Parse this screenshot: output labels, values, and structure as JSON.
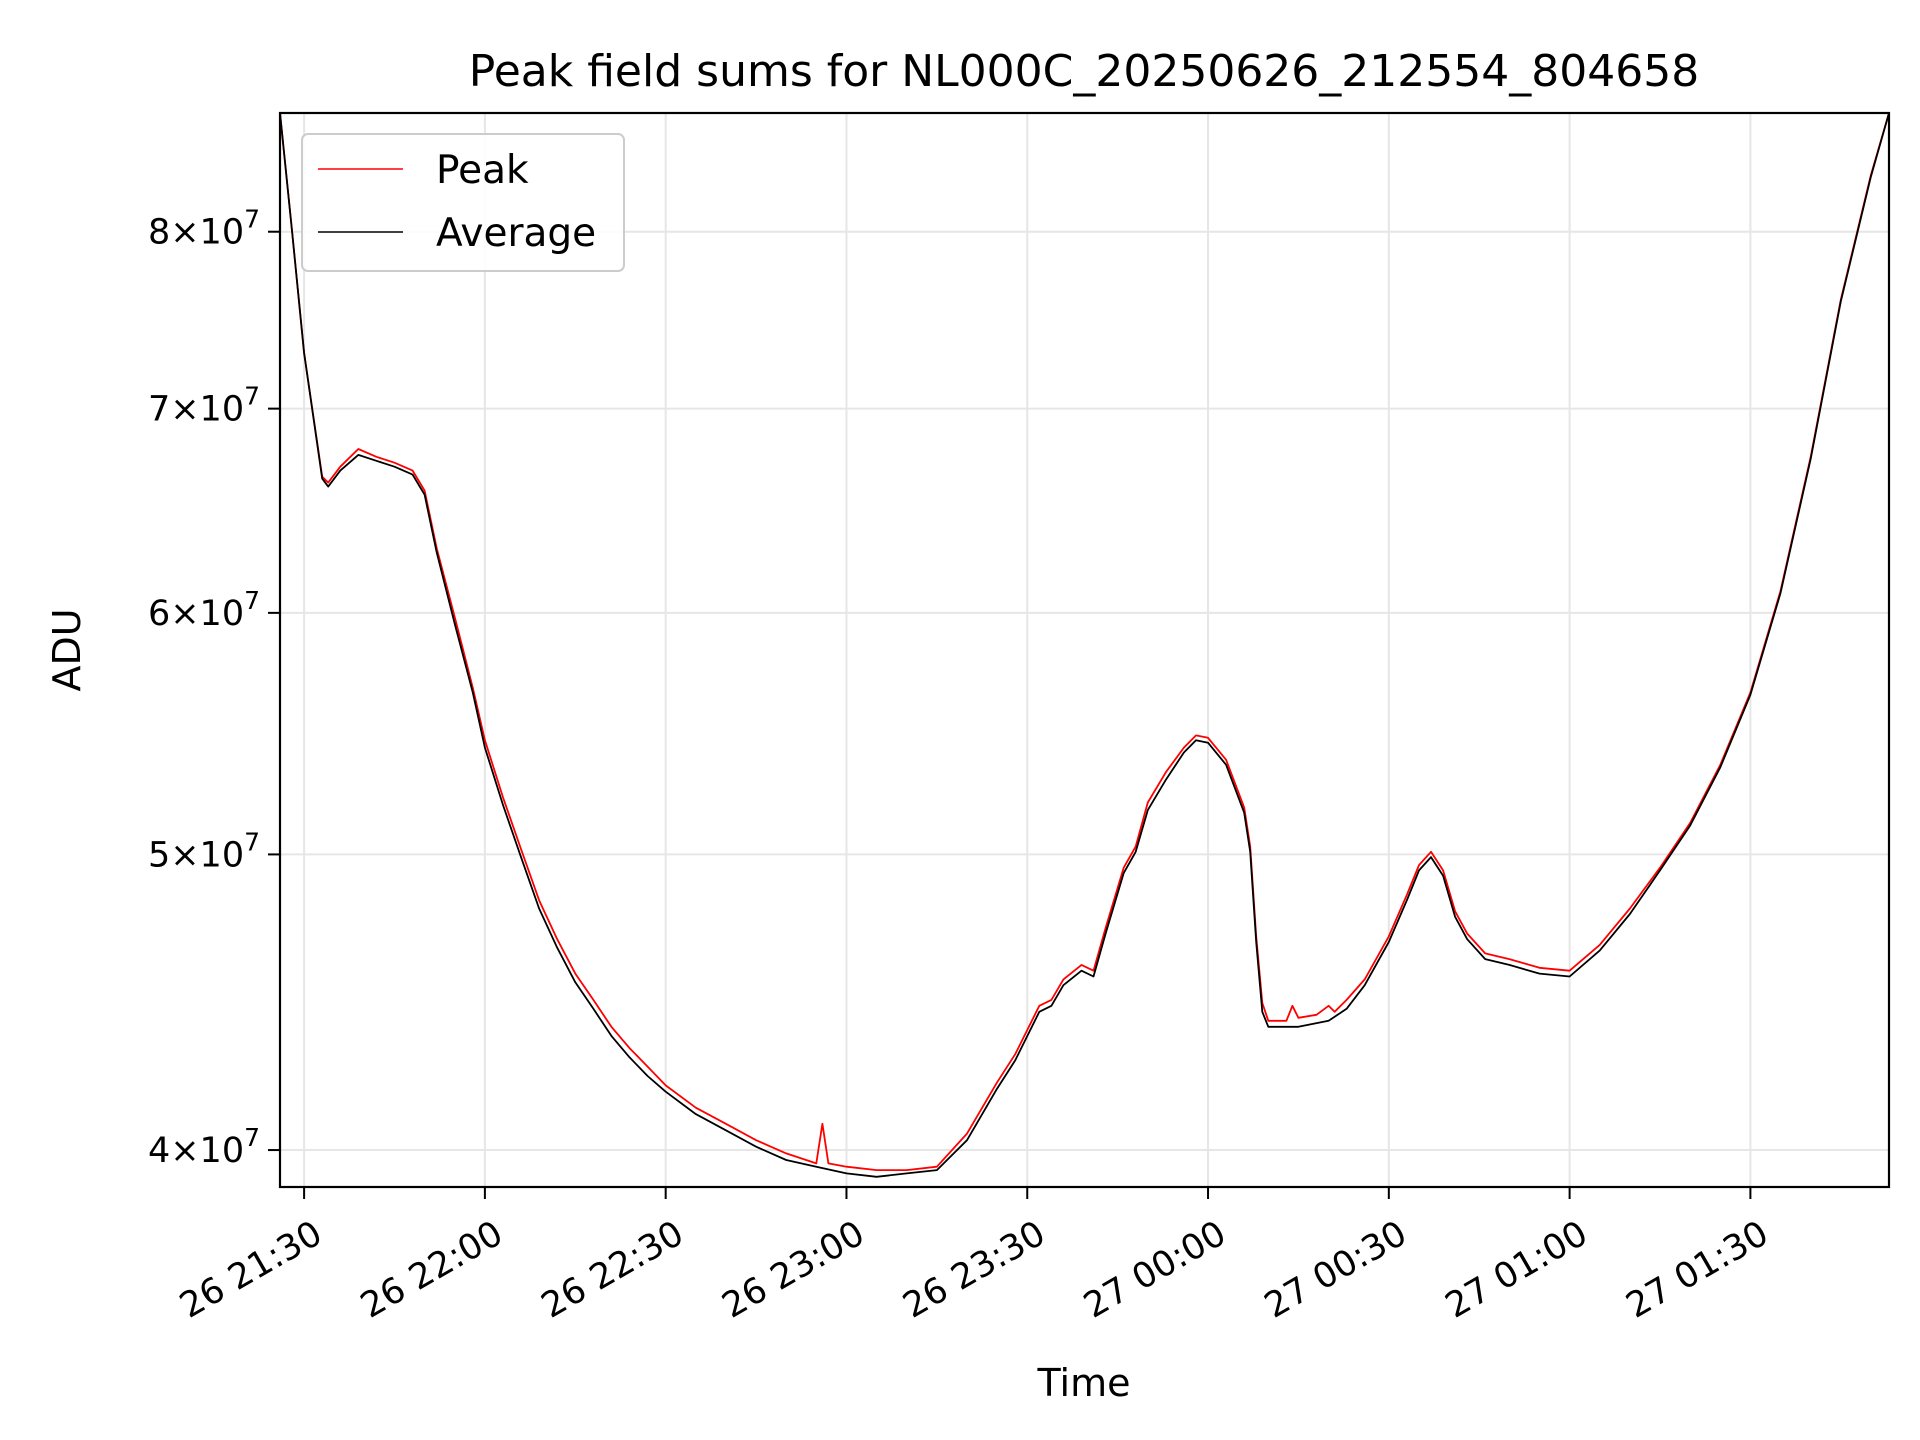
{
  "chart_data": {
    "type": "line",
    "title": "Peak field sums for NL000C_20250626_212554_804658",
    "xlabel": "Time",
    "ylabel": "ADU",
    "x_ticks": [
      "26 21:30",
      "26 22:00",
      "26 22:30",
      "26 23:00",
      "26 23:30",
      "27 00:00",
      "27 00:30",
      "27 01:00",
      "27 01:30"
    ],
    "x_tick_times": [
      "2025-06-26T21:30",
      "2025-06-26T22:00",
      "2025-06-26T22:30",
      "2025-06-26T23:00",
      "2025-06-26T23:30",
      "2025-06-27T00:00",
      "2025-06-27T00:30",
      "2025-06-27T01:00",
      "2025-06-27T01:30"
    ],
    "xlim": [
      "2025-06-26T21:26",
      "2025-06-27T01:53"
    ],
    "y_scale": "log",
    "ylim": [
      38900000,
      87500000
    ],
    "y_ticks": [
      {
        "value": 40000000,
        "mantissa": "4",
        "exponent": "7"
      },
      {
        "value": 50000000,
        "mantissa": "5",
        "exponent": "7"
      },
      {
        "value": 60000000,
        "mantissa": "6",
        "exponent": "7"
      },
      {
        "value": 70000000,
        "mantissa": "7",
        "exponent": "7"
      },
      {
        "value": 80000000,
        "mantissa": "8",
        "exponent": "7"
      }
    ],
    "grid": true,
    "legend_position": "top-left",
    "series": [
      {
        "name": "Peak",
        "color": "#ff0000",
        "points": [
          [
            "2025-06-26T21:26",
            87500000
          ],
          [
            "2025-06-26T21:28",
            80000000
          ],
          [
            "2025-06-26T21:30",
            73000000
          ],
          [
            "2025-06-26T21:33",
            66500000
          ],
          [
            "2025-06-26T21:34",
            66200000
          ],
          [
            "2025-06-26T21:36",
            67000000
          ],
          [
            "2025-06-26T21:39",
            67900000
          ],
          [
            "2025-06-26T21:42",
            67500000
          ],
          [
            "2025-06-26T21:45",
            67200000
          ],
          [
            "2025-06-26T21:48",
            66800000
          ],
          [
            "2025-06-26T21:50",
            65800000
          ],
          [
            "2025-06-26T21:52",
            63000000
          ],
          [
            "2025-06-26T21:55",
            59800000
          ],
          [
            "2025-06-26T21:58",
            56700000
          ],
          [
            "2025-06-26T22:00",
            54500000
          ],
          [
            "2025-06-26T22:03",
            52200000
          ],
          [
            "2025-06-26T22:06",
            50200000
          ],
          [
            "2025-06-26T22:09",
            48300000
          ],
          [
            "2025-06-26T22:12",
            46900000
          ],
          [
            "2025-06-26T22:15",
            45700000
          ],
          [
            "2025-06-26T22:18",
            44800000
          ],
          [
            "2025-06-26T22:21",
            43900000
          ],
          [
            "2025-06-26T22:24",
            43200000
          ],
          [
            "2025-06-26T22:27",
            42600000
          ],
          [
            "2025-06-26T22:30",
            42000000
          ],
          [
            "2025-06-26T22:35",
            41300000
          ],
          [
            "2025-06-26T22:40",
            40800000
          ],
          [
            "2025-06-26T22:45",
            40300000
          ],
          [
            "2025-06-26T22:50",
            39900000
          ],
          [
            "2025-06-26T22:55",
            39600000
          ],
          [
            "2025-06-26T22:56",
            40800000
          ],
          [
            "2025-06-26T22:57",
            39600000
          ],
          [
            "2025-06-26T23:00",
            39500000
          ],
          [
            "2025-06-26T23:05",
            39400000
          ],
          [
            "2025-06-26T23:10",
            39400000
          ],
          [
            "2025-06-26T23:15",
            39500000
          ],
          [
            "2025-06-26T23:20",
            40500000
          ],
          [
            "2025-06-26T23:25",
            42100000
          ],
          [
            "2025-06-26T23:28",
            43000000
          ],
          [
            "2025-06-26T23:32",
            44600000
          ],
          [
            "2025-06-26T23:34",
            44800000
          ],
          [
            "2025-06-26T23:36",
            45500000
          ],
          [
            "2025-06-26T23:39",
            46000000
          ],
          [
            "2025-06-26T23:41",
            45800000
          ],
          [
            "2025-06-26T23:43",
            47300000
          ],
          [
            "2025-06-26T23:46",
            49500000
          ],
          [
            "2025-06-26T23:48",
            50300000
          ],
          [
            "2025-06-26T23:50",
            52000000
          ],
          [
            "2025-06-26T23:53",
            53200000
          ],
          [
            "2025-06-26T23:56",
            54200000
          ],
          [
            "2025-06-26T23:58",
            54700000
          ],
          [
            "2025-06-27T00:00",
            54600000
          ],
          [
            "2025-06-27T00:03",
            53700000
          ],
          [
            "2025-06-27T00:06",
            51800000
          ],
          [
            "2025-06-27T00:07",
            50300000
          ],
          [
            "2025-06-27T00:08",
            47000000
          ],
          [
            "2025-06-27T00:09",
            44700000
          ],
          [
            "2025-06-27T00:10",
            44100000
          ],
          [
            "2025-06-27T00:13",
            44100000
          ],
          [
            "2025-06-27T00:14",
            44600000
          ],
          [
            "2025-06-27T00:15",
            44200000
          ],
          [
            "2025-06-27T00:18",
            44300000
          ],
          [
            "2025-06-27T00:20",
            44600000
          ],
          [
            "2025-06-27T00:21",
            44400000
          ],
          [
            "2025-06-27T00:23",
            44800000
          ],
          [
            "2025-06-27T00:26",
            45500000
          ],
          [
            "2025-06-27T00:30",
            47000000
          ],
          [
            "2025-06-27T00:33",
            48500000
          ],
          [
            "2025-06-27T00:35",
            49600000
          ],
          [
            "2025-06-27T00:37",
            50100000
          ],
          [
            "2025-06-27T00:39",
            49400000
          ],
          [
            "2025-06-27T00:41",
            47900000
          ],
          [
            "2025-06-27T00:43",
            47100000
          ],
          [
            "2025-06-27T00:46",
            46400000
          ],
          [
            "2025-06-27T00:50",
            46200000
          ],
          [
            "2025-06-27T00:55",
            45900000
          ],
          [
            "2025-06-27T01:00",
            45800000
          ],
          [
            "2025-06-27T01:05",
            46700000
          ],
          [
            "2025-06-27T01:10",
            48000000
          ],
          [
            "2025-06-27T01:15",
            49500000
          ],
          [
            "2025-06-27T01:20",
            51200000
          ],
          [
            "2025-06-27T01:25",
            53500000
          ],
          [
            "2025-06-27T01:30",
            56500000
          ],
          [
            "2025-06-27T01:35",
            61000000
          ],
          [
            "2025-06-27T01:40",
            67500000
          ],
          [
            "2025-06-27T01:45",
            76000000
          ],
          [
            "2025-06-27T01:50",
            83500000
          ],
          [
            "2025-06-27T01:53",
            87500000
          ]
        ]
      },
      {
        "name": "Average",
        "color": "#000000",
        "points": [
          [
            "2025-06-26T21:26",
            87500000
          ],
          [
            "2025-06-26T21:28",
            80000000
          ],
          [
            "2025-06-26T21:30",
            73000000
          ],
          [
            "2025-06-26T21:33",
            66400000
          ],
          [
            "2025-06-26T21:34",
            66000000
          ],
          [
            "2025-06-26T21:36",
            66800000
          ],
          [
            "2025-06-26T21:39",
            67600000
          ],
          [
            "2025-06-26T21:42",
            67300000
          ],
          [
            "2025-06-26T21:45",
            67000000
          ],
          [
            "2025-06-26T21:48",
            66600000
          ],
          [
            "2025-06-26T21:50",
            65600000
          ],
          [
            "2025-06-26T21:52",
            62800000
          ],
          [
            "2025-06-26T21:55",
            59500000
          ],
          [
            "2025-06-26T21:58",
            56500000
          ],
          [
            "2025-06-26T22:00",
            54200000
          ],
          [
            "2025-06-26T22:03",
            51900000
          ],
          [
            "2025-06-26T22:06",
            49900000
          ],
          [
            "2025-06-26T22:09",
            48000000
          ],
          [
            "2025-06-26T22:12",
            46600000
          ],
          [
            "2025-06-26T22:15",
            45400000
          ],
          [
            "2025-06-26T22:18",
            44500000
          ],
          [
            "2025-06-26T22:21",
            43600000
          ],
          [
            "2025-06-26T22:24",
            42900000
          ],
          [
            "2025-06-26T22:27",
            42300000
          ],
          [
            "2025-06-26T22:30",
            41800000
          ],
          [
            "2025-06-26T22:35",
            41100000
          ],
          [
            "2025-06-26T22:40",
            40600000
          ],
          [
            "2025-06-26T22:45",
            40100000
          ],
          [
            "2025-06-26T22:50",
            39700000
          ],
          [
            "2025-06-26T22:55",
            39500000
          ],
          [
            "2025-06-26T23:00",
            39300000
          ],
          [
            "2025-06-26T23:05",
            39200000
          ],
          [
            "2025-06-26T23:10",
            39300000
          ],
          [
            "2025-06-26T23:15",
            39400000
          ],
          [
            "2025-06-26T23:20",
            40300000
          ],
          [
            "2025-06-26T23:25",
            41900000
          ],
          [
            "2025-06-26T23:28",
            42800000
          ],
          [
            "2025-06-26T23:32",
            44400000
          ],
          [
            "2025-06-26T23:34",
            44600000
          ],
          [
            "2025-06-26T23:36",
            45300000
          ],
          [
            "2025-06-26T23:39",
            45800000
          ],
          [
            "2025-06-26T23:41",
            45600000
          ],
          [
            "2025-06-26T23:43",
            47100000
          ],
          [
            "2025-06-26T23:46",
            49300000
          ],
          [
            "2025-06-26T23:48",
            50100000
          ],
          [
            "2025-06-26T23:50",
            51700000
          ],
          [
            "2025-06-26T23:53",
            52900000
          ],
          [
            "2025-06-26T23:56",
            54000000
          ],
          [
            "2025-06-26T23:58",
            54500000
          ],
          [
            "2025-06-27T00:00",
            54400000
          ],
          [
            "2025-06-27T00:03",
            53500000
          ],
          [
            "2025-06-27T00:06",
            51600000
          ],
          [
            "2025-06-27T00:07",
            50100000
          ],
          [
            "2025-06-27T00:08",
            46800000
          ],
          [
            "2025-06-27T00:09",
            44400000
          ],
          [
            "2025-06-27T00:10",
            43900000
          ],
          [
            "2025-06-27T00:15",
            43900000
          ],
          [
            "2025-06-27T00:20",
            44100000
          ],
          [
            "2025-06-27T00:23",
            44500000
          ],
          [
            "2025-06-27T00:26",
            45300000
          ],
          [
            "2025-06-27T00:30",
            46800000
          ],
          [
            "2025-06-27T00:33",
            48300000
          ],
          [
            "2025-06-27T00:35",
            49400000
          ],
          [
            "2025-06-27T00:37",
            49900000
          ],
          [
            "2025-06-27T00:39",
            49200000
          ],
          [
            "2025-06-27T00:41",
            47700000
          ],
          [
            "2025-06-27T00:43",
            46900000
          ],
          [
            "2025-06-27T00:46",
            46200000
          ],
          [
            "2025-06-27T00:50",
            46000000
          ],
          [
            "2025-06-27T00:55",
            45700000
          ],
          [
            "2025-06-27T01:00",
            45600000
          ],
          [
            "2025-06-27T01:05",
            46500000
          ],
          [
            "2025-06-27T01:10",
            47800000
          ],
          [
            "2025-06-27T01:15",
            49400000
          ],
          [
            "2025-06-27T01:20",
            51100000
          ],
          [
            "2025-06-27T01:25",
            53400000
          ],
          [
            "2025-06-27T01:30",
            56400000
          ],
          [
            "2025-06-27T01:35",
            60900000
          ],
          [
            "2025-06-27T01:40",
            67400000
          ],
          [
            "2025-06-27T01:45",
            75900000
          ],
          [
            "2025-06-27T01:50",
            83400000
          ],
          [
            "2025-06-27T01:53",
            87500000
          ]
        ]
      }
    ]
  }
}
